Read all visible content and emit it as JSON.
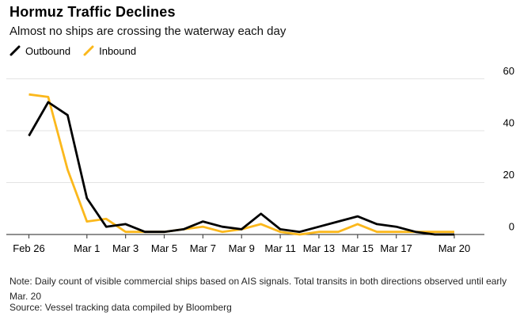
{
  "header": {
    "title": "Hormuz Traffic Declines",
    "subtitle": "Almost no ships are crossing the waterway each day"
  },
  "legend": [
    {
      "label": "Outbound",
      "color": "#000000"
    },
    {
      "label": "Inbound",
      "color": "#FBB81C"
    }
  ],
  "chart_data": {
    "type": "line",
    "title": "Hormuz Traffic Declines",
    "subtitle": "Almost no ships are crossing the waterway each day",
    "categories": [
      "Feb 26",
      "Feb 27",
      "Feb 28",
      "Mar 1",
      "Mar 2",
      "Mar 3",
      "Mar 4",
      "Mar 5",
      "Mar 6",
      "Mar 7",
      "Mar 8",
      "Mar 9",
      "Mar 10",
      "Mar 11",
      "Mar 12",
      "Mar 13",
      "Mar 14",
      "Mar 15",
      "Mar 16",
      "Mar 17",
      "Mar 18",
      "Mar 19",
      "Mar 20"
    ],
    "series": [
      {
        "name": "Outbound",
        "color": "#000000",
        "values": [
          38,
          51,
          46,
          14,
          3,
          4,
          1,
          1,
          2,
          5,
          3,
          2,
          8,
          2,
          1,
          3,
          5,
          7,
          4,
          3,
          1,
          0,
          0
        ]
      },
      {
        "name": "Inbound",
        "color": "#FBB81C",
        "values": [
          54,
          53,
          25,
          5,
          6,
          1,
          1,
          1,
          2,
          3,
          1,
          2,
          4,
          1,
          0,
          1,
          1,
          4,
          1,
          1,
          1,
          1,
          1
        ]
      }
    ],
    "xlabel": "",
    "ylabel": "",
    "ylim": [
      0,
      60
    ],
    "yticks": [
      0,
      20,
      40,
      60
    ],
    "ytick_side": "right",
    "xticks": [
      "Feb 26",
      "Mar 1",
      "Mar 3",
      "Mar 5",
      "Mar 7",
      "Mar 9",
      "Mar 11",
      "Mar 13",
      "Mar 15",
      "Mar 17",
      "Mar 20"
    ],
    "grid": "horizontal",
    "legend_position": "top-left",
    "colors": {
      "grid": "#E3E3E3",
      "axis": "#4D4D4D",
      "tick_label": "#000000"
    }
  },
  "footer": {
    "note": "Note: Daily count of visible commercial ships based on AIS signals. Total transits in both directions observed until early Mar. 20",
    "source": "Source: Vessel tracking data compiled by Bloomberg"
  }
}
